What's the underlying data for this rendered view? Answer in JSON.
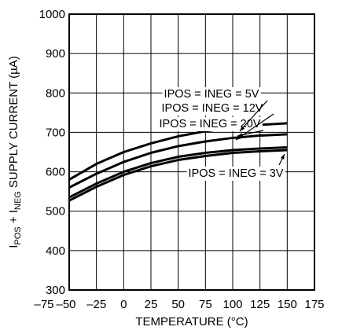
{
  "chart_data": {
    "type": "line",
    "title": "",
    "xlabel": "TEMPERATURE (°C)",
    "ylabel": "IPOS + INEG SUPPLY CURRENT (µA)",
    "ylabel_parts": {
      "pre": "I",
      "sub1": "POS",
      "mid": " + I",
      "sub2": "NEG",
      "post": " SUPPLY CURRENT (µA)"
    },
    "xlim": [
      -50,
      175
    ],
    "ylim": [
      300,
      1000
    ],
    "grid": true,
    "x_ticks": [
      -75,
      -50,
      -25,
      0,
      25,
      50,
      75,
      100,
      125,
      150,
      175
    ],
    "x_tick_labels": [
      "–75",
      "–50",
      "–25",
      "0",
      "25",
      "50",
      "75",
      "100",
      "125",
      "150",
      "175"
    ],
    "y_ticks": [
      300,
      400,
      500,
      600,
      700,
      800,
      900,
      1000
    ],
    "y_tick_labels": [
      "300",
      "400",
      "500",
      "600",
      "700",
      "800",
      "900",
      "1000"
    ],
    "x": [
      -50,
      -25,
      0,
      25,
      50,
      75,
      100,
      125,
      150
    ],
    "series": [
      {
        "name": "IPOS = INEG = 20V",
        "values": [
          580,
          620,
          650,
          672,
          690,
          703,
          712,
          719,
          723
        ]
      },
      {
        "name": "IPOS = INEG = 12V",
        "values": [
          560,
          595,
          625,
          648,
          665,
          677,
          686,
          692,
          695
        ]
      },
      {
        "name": "IPOS = INEG = 5V",
        "values": [
          535,
          570,
          600,
          622,
          638,
          648,
          655,
          659,
          662
        ]
      },
      {
        "name": "IPOS = INEG = 3V",
        "values": [
          527,
          562,
          592,
          614,
          630,
          640,
          648,
          652,
          655
        ]
      }
    ],
    "annotations": [
      {
        "text": "IPOS = INEG = 5V",
        "series": 2
      },
      {
        "text": "IPOS = INEG = 12V",
        "series": 1
      },
      {
        "text": "IPOS = INEG = 20V",
        "series": 0
      },
      {
        "text": "IPOS = INEG = 3V",
        "series": 3
      }
    ]
  }
}
